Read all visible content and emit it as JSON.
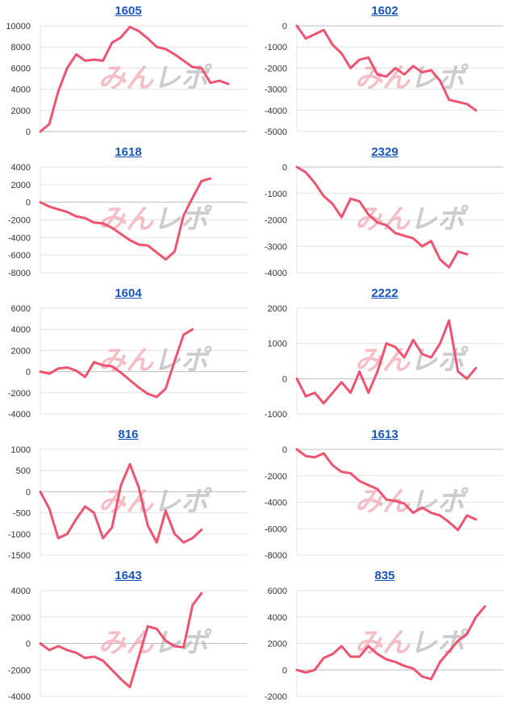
{
  "colors": {
    "line": "#ee5370",
    "grid": "#e3e3e3",
    "zero": "#bdbdbd",
    "title": "#1a56b8",
    "watermark_pink": "#f0a9b4",
    "watermark_gray": "#bcbcbc"
  },
  "watermark": {
    "text": "みんレポ"
  },
  "chart_data": [
    {
      "type": "line",
      "title": "1605",
      "ylim": [
        0,
        10000
      ],
      "yticks": [
        0,
        2000,
        4000,
        6000,
        8000,
        10000
      ],
      "values": [
        0,
        700,
        3800,
        6000,
        7300,
        6700,
        6800,
        6700,
        8400,
        8900,
        9900,
        9500,
        8800,
        8000,
        7800,
        7300,
        6700,
        6100,
        6000,
        4600,
        4800,
        4500
      ]
    },
    {
      "type": "line",
      "title": "1602",
      "ylim": [
        -5000,
        0
      ],
      "yticks": [
        -5000,
        -4000,
        -3000,
        -2000,
        -1000,
        0
      ],
      "values": [
        0,
        -600,
        -400,
        -200,
        -900,
        -1300,
        -2000,
        -1600,
        -1500,
        -2300,
        -2400,
        -2000,
        -2300,
        -1900,
        -2200,
        -2100,
        -2600,
        -3500,
        -3600,
        -3700,
        -4000
      ]
    },
    {
      "type": "line",
      "title": "1618",
      "ylim": [
        -8000,
        4000
      ],
      "yticks": [
        -8000,
        -6000,
        -4000,
        -2000,
        0,
        2000,
        4000
      ],
      "values": [
        0,
        -500,
        -800,
        -1100,
        -1600,
        -1800,
        -2300,
        -2400,
        -2900,
        -3600,
        -4300,
        -4800,
        -4900,
        -5700,
        -6500,
        -5600,
        -1500,
        500,
        2400,
        2700
      ]
    },
    {
      "type": "line",
      "title": "2329",
      "ylim": [
        -4000,
        0
      ],
      "yticks": [
        -4000,
        -3000,
        -2000,
        -1000,
        0
      ],
      "values": [
        0,
        -200,
        -600,
        -1100,
        -1400,
        -1900,
        -1200,
        -1300,
        -1800,
        -2100,
        -2200,
        -2500,
        -2600,
        -2700,
        -3000,
        -2800,
        -3500,
        -3800,
        -3200,
        -3300
      ]
    },
    {
      "type": "line",
      "title": "1604",
      "ylim": [
        -4000,
        6000
      ],
      "yticks": [
        -4000,
        -2000,
        0,
        2000,
        4000,
        6000
      ],
      "values": [
        0,
        -200,
        300,
        400,
        100,
        -500,
        900,
        600,
        500,
        -100,
        -800,
        -1500,
        -2100,
        -2400,
        -1600,
        1000,
        3500,
        4000
      ]
    },
    {
      "type": "line",
      "title": "2222",
      "ylim": [
        -1000,
        2000
      ],
      "yticks": [
        -1000,
        0,
        1000,
        2000
      ],
      "values": [
        0,
        -500,
        -400,
        -700,
        -400,
        -100,
        -400,
        200,
        -400,
        200,
        1000,
        900,
        600,
        1100,
        700,
        600,
        1000,
        1650,
        200,
        0,
        300
      ]
    },
    {
      "type": "line",
      "title": "816",
      "ylim": [
        -1500,
        1000
      ],
      "yticks": [
        -1500,
        -1000,
        -500,
        0,
        500,
        1000
      ],
      "values": [
        0,
        -400,
        -1100,
        -1000,
        -650,
        -350,
        -500,
        -1100,
        -850,
        150,
        650,
        100,
        -800,
        -1200,
        -450,
        -1000,
        -1200,
        -1100,
        -900
      ]
    },
    {
      "type": "line",
      "title": "1613",
      "ylim": [
        -8000,
        0
      ],
      "yticks": [
        -8000,
        -6000,
        -4000,
        -2000,
        0
      ],
      "values": [
        0,
        -500,
        -600,
        -300,
        -1200,
        -1700,
        -1800,
        -2400,
        -2700,
        -3000,
        -3800,
        -3900,
        -4100,
        -4800,
        -4400,
        -4800,
        -5000,
        -5500,
        -6100,
        -5000,
        -5300
      ]
    },
    {
      "type": "line",
      "title": "1643",
      "ylim": [
        -4000,
        4000
      ],
      "yticks": [
        -4000,
        -2000,
        0,
        2000,
        4000
      ],
      "values": [
        0,
        -500,
        -200,
        -500,
        -700,
        -1100,
        -1000,
        -1300,
        -2000,
        -2700,
        -3300,
        -1000,
        1300,
        1100,
        200,
        -200,
        -300,
        2900,
        3800
      ]
    },
    {
      "type": "line",
      "title": "835",
      "ylim": [
        -2000,
        6000
      ],
      "yticks": [
        -2000,
        0,
        2000,
        4000,
        6000
      ],
      "values": [
        0,
        -200,
        0,
        900,
        1200,
        1800,
        1000,
        1000,
        1800,
        1200,
        800,
        600,
        300,
        100,
        -500,
        -700,
        600,
        1400,
        2200,
        2700,
        4000,
        4800
      ]
    }
  ]
}
